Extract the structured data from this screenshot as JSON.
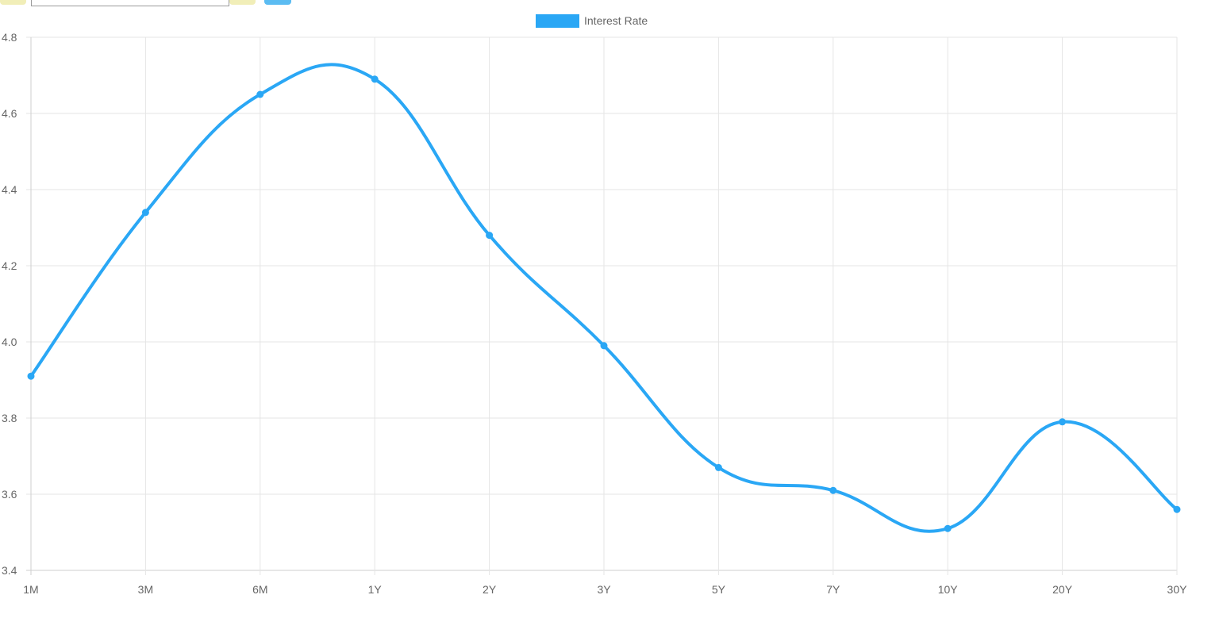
{
  "toolbar": {
    "input_value": ""
  },
  "colors": {
    "series": "#2aa7f5",
    "grid": "#e5e5e5",
    "axis": "#cfcfcf",
    "text": "#666666"
  },
  "chart_data": {
    "type": "line",
    "categories": [
      "1M",
      "3M",
      "6M",
      "1Y",
      "2Y",
      "3Y",
      "5Y",
      "7Y",
      "10Y",
      "20Y",
      "30Y"
    ],
    "series": [
      {
        "name": "Interest Rate",
        "values": [
          3.91,
          4.34,
          4.65,
          4.69,
          4.28,
          3.99,
          3.67,
          3.61,
          3.51,
          3.79,
          3.56
        ]
      }
    ],
    "yticks": [
      "3.4",
      "3.6",
      "3.8",
      "4.0",
      "4.2",
      "4.4",
      "4.6",
      "4.8"
    ],
    "ylim": [
      3.4,
      4.8
    ],
    "title": "",
    "xlabel": "",
    "ylabel": "",
    "grid": true,
    "legend_position": "top-center",
    "curve": "smooth"
  }
}
